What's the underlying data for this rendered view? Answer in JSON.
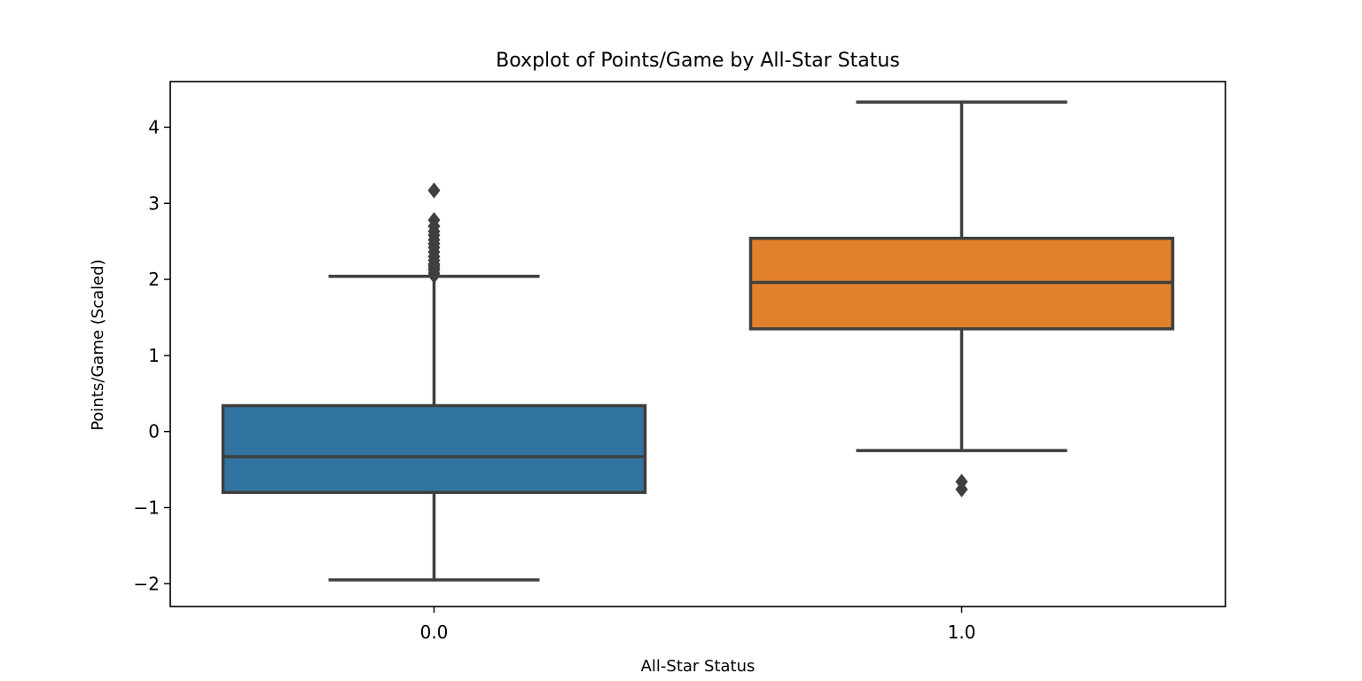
{
  "chart_data": {
    "type": "box",
    "title": "Boxplot of Points/Game by All-Star Status",
    "xlabel": "All-Star Status",
    "ylabel": "Points/Game (Scaled)",
    "categories": [
      "0.0",
      "1.0"
    ],
    "ylim": [
      -2.3,
      4.6
    ],
    "yticks": [
      -2,
      -1,
      0,
      1,
      2,
      3,
      4
    ],
    "ytick_labels": [
      "−2",
      "−1",
      "0",
      "1",
      "2",
      "3",
      "4"
    ],
    "grid": false,
    "boxes": [
      {
        "category": "0.0",
        "color": "#3274a1",
        "whisker_low": -1.95,
        "q1": -0.8,
        "median": -0.33,
        "q3": 0.34,
        "whisker_high": 2.04,
        "outliers": [
          2.05,
          2.08,
          2.12,
          2.15,
          2.18,
          2.2,
          2.25,
          2.3,
          2.36,
          2.42,
          2.47,
          2.52,
          2.58,
          2.63,
          2.7,
          2.78,
          3.17
        ]
      },
      {
        "category": "1.0",
        "color": "#e1812c",
        "whisker_low": -0.25,
        "q1": 1.35,
        "median": 1.96,
        "q3": 2.54,
        "whisker_high": 4.33,
        "outliers": [
          -0.66,
          -0.76
        ]
      }
    ]
  }
}
